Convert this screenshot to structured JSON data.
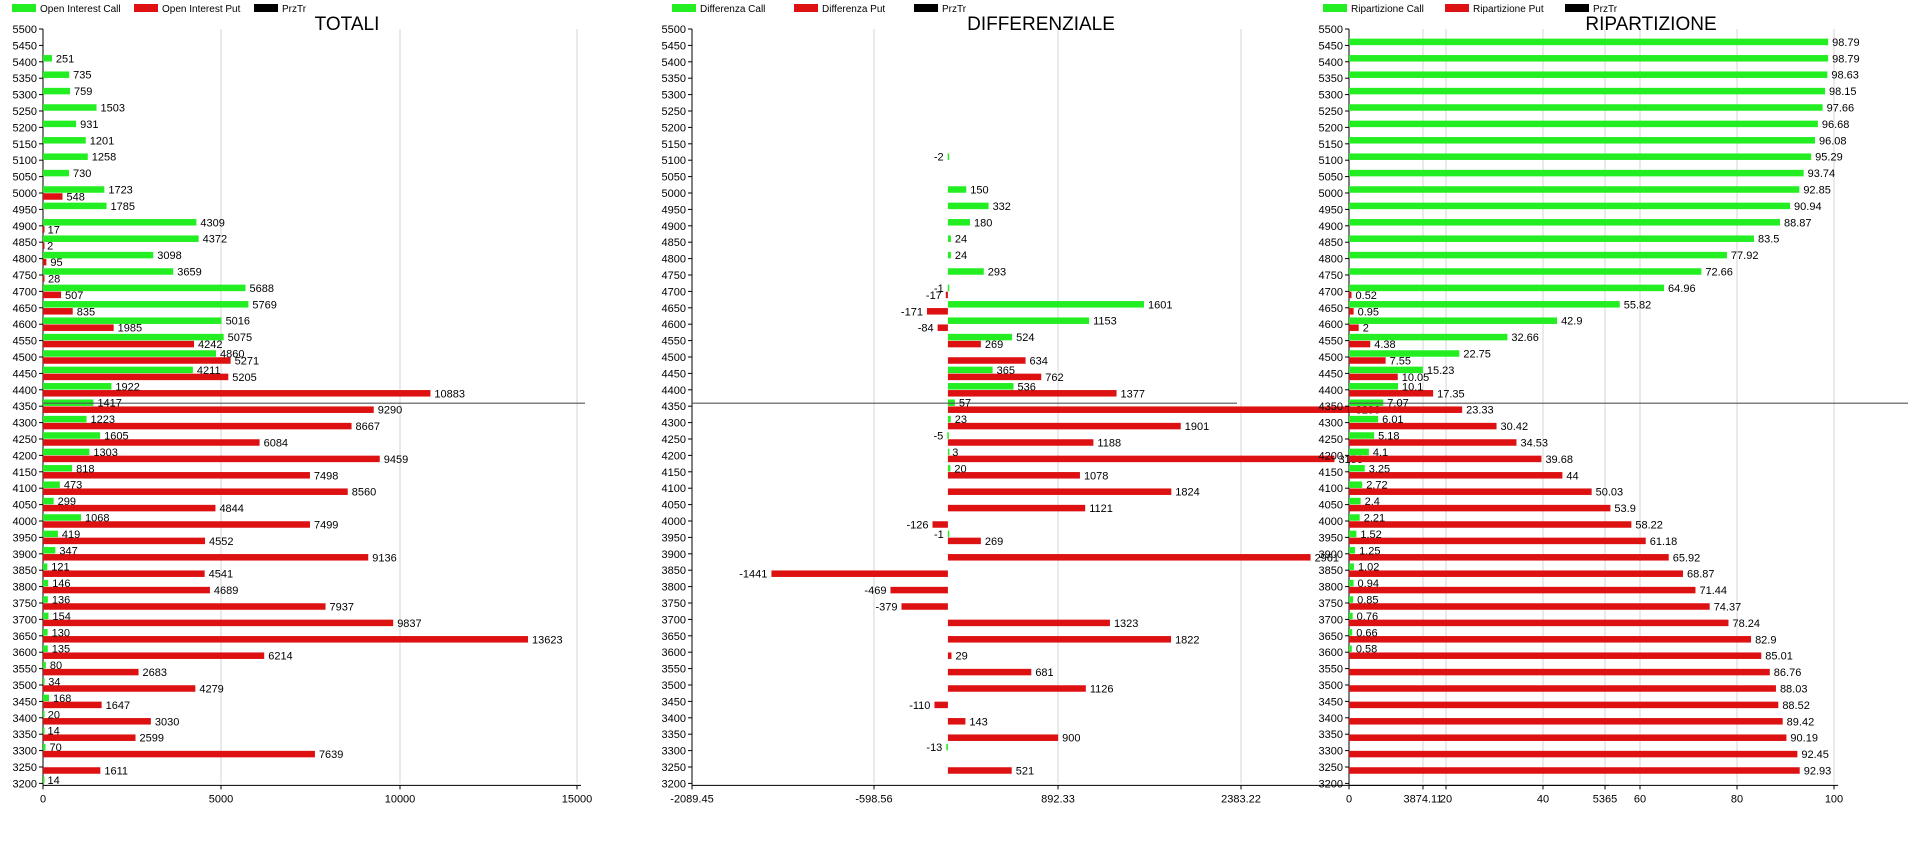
{
  "colors": {
    "call": "#22ee22",
    "put": "#dd1111",
    "pirztr": "#000000",
    "grid": "#d4d4d4"
  },
  "chart_data": [
    {
      "type": "bar",
      "title": "TOTALI",
      "legend": [
        "Open Interest Call",
        "Open Interest Put",
        "PrzTr"
      ],
      "strikes": [
        5500,
        5450,
        5400,
        5350,
        5300,
        5250,
        5200,
        5150,
        5100,
        5050,
        5000,
        4950,
        4900,
        4850,
        4800,
        4750,
        4700,
        4650,
        4600,
        4550,
        4500,
        4450,
        4400,
        4350,
        4300,
        4250,
        4200,
        4150,
        4100,
        4050,
        4000,
        3950,
        3900,
        3850,
        3800,
        3750,
        3700,
        3650,
        3600,
        3550,
        3500,
        3450,
        3400,
        3350,
        3300,
        3250,
        3200
      ],
      "call": [
        null,
        null,
        251,
        735,
        759,
        1503,
        931,
        1201,
        1258,
        730,
        1723,
        1785,
        4309,
        4372,
        3098,
        3659,
        5688,
        5769,
        5016,
        5075,
        4860,
        4211,
        1922,
        1417,
        1223,
        1605,
        1303,
        818,
        473,
        299,
        1068,
        419,
        347,
        121,
        146,
        136,
        154,
        130,
        135,
        80,
        34,
        168,
        20,
        14,
        70,
        null,
        14
      ],
      "put": [
        null,
        null,
        null,
        null,
        null,
        null,
        null,
        null,
        null,
        null,
        548,
        null,
        17,
        2,
        95,
        28,
        507,
        835,
        1985,
        4242,
        5271,
        5205,
        10883,
        9290,
        8667,
        6084,
        9459,
        7498,
        8560,
        4844,
        7499,
        4552,
        9136,
        4541,
        4689,
        7937,
        9837,
        13623,
        6214,
        2683,
        4279,
        1647,
        3030,
        2599,
        7639,
        1611,
        null
      ],
      "xlim": [
        0,
        15000
      ],
      "xticks": [
        "0",
        "5000",
        "10000",
        "15000"
      ],
      "hline_strike": 4350
    },
    {
      "type": "bar",
      "title": "DIFFERENZIALE",
      "legend": [
        "Differenza Call",
        "Differenza Put",
        "PrzTr"
      ],
      "strikes": [
        5500,
        5450,
        5400,
        5350,
        5300,
        5250,
        5200,
        5150,
        5100,
        5050,
        5000,
        4950,
        4900,
        4850,
        4800,
        4750,
        4700,
        4650,
        4600,
        4550,
        4500,
        4450,
        4400,
        4350,
        4300,
        4250,
        4200,
        4150,
        4100,
        4050,
        4000,
        3950,
        3900,
        3850,
        3800,
        3750,
        3700,
        3650,
        3600,
        3550,
        3500,
        3450,
        3400,
        3350,
        3300,
        3250,
        3200
      ],
      "call": [
        null,
        null,
        null,
        null,
        null,
        null,
        null,
        null,
        -2,
        null,
        150,
        332,
        180,
        24,
        24,
        293,
        -1,
        null,
        null,
        524,
        null,
        365,
        536,
        57,
        23,
        -5,
        3,
        20,
        null,
        null,
        null,
        -1,
        null,
        null,
        null,
        null,
        null,
        null,
        null,
        null,
        null,
        null,
        null,
        null,
        -13,
        null,
        null
      ],
      "put": [
        null,
        null,
        null,
        null,
        null,
        null,
        null,
        null,
        null,
        null,
        null,
        null,
        null,
        null,
        null,
        null,
        -17,
        -171,
        -84,
        269,
        634,
        762,
        1377,
        3296,
        1901,
        1188,
        3156,
        1078,
        1824,
        1121,
        -126,
        269,
        2961,
        -1441,
        -469,
        -379,
        1323,
        1822,
        29,
        681,
        1126,
        -110,
        143,
        900,
        null,
        521,
        null
      ],
      "call_over": [
        null,
        null,
        null,
        null,
        null,
        null,
        null,
        null,
        null,
        null,
        null,
        null,
        null,
        null,
        null,
        null,
        null,
        1601,
        1153,
        null,
        null,
        null,
        null,
        null,
        null,
        null,
        null,
        null,
        null,
        null,
        null,
        null,
        null,
        null,
        null,
        null,
        null,
        null,
        null,
        null,
        null,
        null,
        null,
        null,
        null,
        null,
        null
      ],
      "xlim": [
        -2089.45,
        5365
      ],
      "xticks": [
        "-2089.45",
        "-598.56",
        "892.33",
        "2383.22",
        "3874.11",
        "5365"
      ],
      "hline_strike": 4350
    },
    {
      "type": "bar",
      "title": "RIPARTIZIONE",
      "legend": [
        "Ripartizione Call",
        "Ripartizione Put",
        "PrzTr"
      ],
      "strikes": [
        5500,
        5450,
        5400,
        5350,
        5300,
        5250,
        5200,
        5150,
        5100,
        5050,
        5000,
        4950,
        4900,
        4850,
        4800,
        4750,
        4700,
        4650,
        4600,
        4550,
        4500,
        4450,
        4400,
        4350,
        4300,
        4250,
        4200,
        4150,
        4100,
        4050,
        4000,
        3950,
        3900,
        3850,
        3800,
        3750,
        3700,
        3650,
        3600,
        3550,
        3500,
        3450,
        3400,
        3350,
        3300,
        3250,
        3200
      ],
      "call": [
        null,
        98.79,
        98.79,
        98.63,
        98.15,
        97.66,
        96.68,
        96.08,
        95.29,
        93.74,
        92.85,
        90.94,
        88.87,
        83.5,
        77.92,
        72.66,
        64.96,
        55.82,
        42.9,
        32.66,
        22.75,
        15.23,
        10.1,
        7.07,
        6.01,
        5.18,
        4.1,
        3.25,
        2.72,
        2.4,
        2.21,
        1.52,
        1.25,
        1.02,
        0.94,
        0.85,
        0.76,
        0.66,
        0.58,
        null,
        null,
        null,
        null,
        null,
        null,
        null,
        null
      ],
      "put": [
        null,
        null,
        null,
        null,
        null,
        null,
        null,
        null,
        null,
        null,
        null,
        null,
        null,
        null,
        null,
        null,
        0.52,
        0.95,
        2,
        4.38,
        7.55,
        10.05,
        17.35,
        23.33,
        30.42,
        34.53,
        39.68,
        44,
        50.03,
        53.9,
        58.22,
        61.18,
        65.92,
        68.87,
        71.44,
        74.37,
        78.24,
        82.9,
        85.01,
        86.76,
        88.03,
        88.52,
        89.42,
        90.19,
        92.45,
        92.93,
        null
      ],
      "xlim": [
        0,
        100
      ],
      "xticks": [
        "0",
        "20",
        "40",
        "60",
        "80",
        "100"
      ],
      "hline_strike": 4350
    }
  ]
}
